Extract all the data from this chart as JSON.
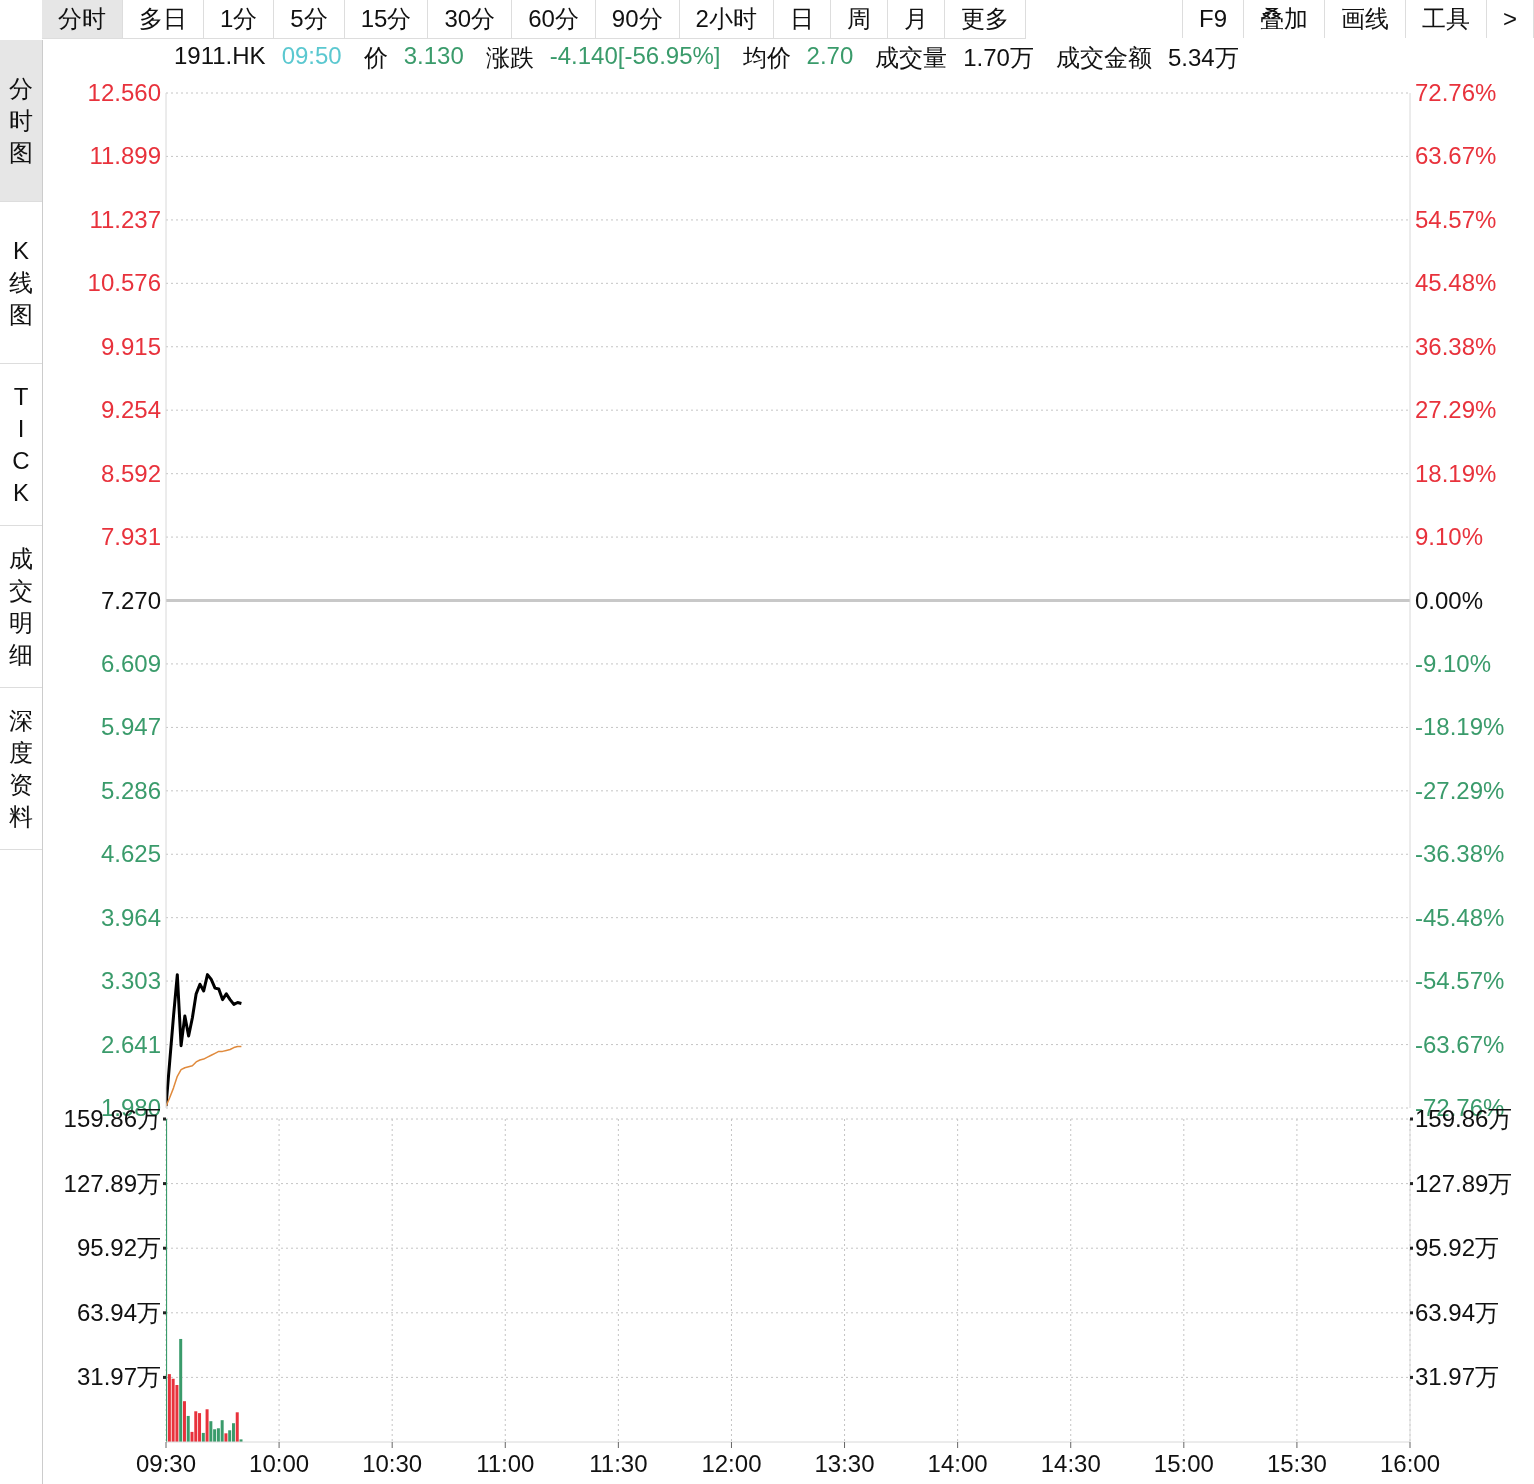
{
  "chart_data": [
    {
      "type": "line",
      "annotations": [
        "1911.HK",
        "09:50",
        "价",
        "3.130",
        "涨跌",
        "-4.140[-56.95%]",
        "均价",
        "2.70",
        "成交量",
        "1.70万",
        "成交金额",
        "5.34万",
        "分时",
        "多日",
        "1分",
        "5分",
        "15分",
        "30分",
        "60分",
        "90分",
        "2小时",
        "日",
        "周",
        "月",
        "更多",
        "F9",
        "叠加",
        "画线",
        "工具",
        ">",
        "分时图",
        "K线图",
        "TICK",
        "成交明细",
        "深度资料"
      ],
      "series": [
        {
          "color": "#000000",
          "values": [
            2.0,
            2.47,
            2.94,
            3.37,
            2.63,
            2.94,
            2.73,
            2.92,
            3.17,
            3.27,
            3.2,
            3.37,
            3.32,
            3.23,
            3.22,
            3.11,
            3.17,
            3.11,
            3.06,
            3.08,
            3.07,
            null,
            null,
            null,
            null,
            null,
            null,
            null,
            null,
            null,
            null,
            null,
            null,
            null,
            null,
            null,
            null,
            null,
            null,
            null,
            null,
            null,
            null,
            null,
            null,
            null,
            null,
            null,
            null,
            null,
            null,
            null,
            null,
            null,
            null,
            null,
            null,
            null,
            null,
            null,
            null,
            null,
            null,
            null,
            null,
            null,
            null,
            null,
            null,
            null,
            null,
            null,
            null,
            null,
            null,
            null,
            null,
            null,
            null,
            null,
            null,
            null,
            null,
            null,
            null,
            null,
            null,
            null,
            null,
            null,
            null,
            null,
            null,
            null,
            null,
            null,
            null,
            null,
            null,
            null,
            null,
            null,
            null,
            null,
            null,
            null,
            null,
            null,
            null,
            null,
            null,
            null,
            null,
            null,
            null,
            null,
            null,
            null,
            null,
            null,
            null,
            null,
            null,
            null,
            null,
            null,
            null,
            null,
            null,
            null,
            null,
            null,
            null,
            null,
            null,
            null,
            null,
            null,
            null,
            null,
            null,
            null,
            null,
            null,
            null,
            null,
            null,
            null,
            null,
            null,
            null,
            null,
            null,
            null,
            null,
            null,
            null,
            null,
            null,
            null,
            null,
            null,
            null,
            null,
            null,
            null,
            null,
            null,
            null,
            null,
            null,
            null,
            null,
            null,
            null,
            null,
            null,
            null,
            null,
            null,
            null,
            null,
            null,
            null,
            null,
            null,
            null,
            null,
            null,
            null,
            null,
            null,
            null,
            null,
            null,
            null,
            null,
            null,
            null,
            null,
            null,
            null,
            null,
            null,
            null,
            null,
            null,
            null,
            null,
            null,
            null,
            null,
            null,
            null,
            null,
            null,
            null,
            null,
            null,
            null,
            null,
            null,
            null,
            null,
            null,
            null,
            null,
            null,
            null,
            null,
            null,
            null,
            null,
            null,
            null,
            null,
            null,
            null,
            null,
            null,
            null,
            null,
            null,
            null,
            null,
            null,
            null,
            null,
            null,
            null,
            null,
            null,
            null,
            null,
            null,
            null,
            null,
            null,
            null,
            null,
            null,
            null,
            null,
            null,
            null,
            null,
            null,
            null,
            null,
            null,
            null,
            null,
            null,
            null,
            null,
            null,
            null,
            null,
            null,
            null,
            null,
            null,
            null,
            null,
            null,
            null,
            null,
            null,
            null,
            null,
            null,
            null,
            null,
            null,
            null,
            null,
            null,
            null,
            null,
            null,
            null,
            null,
            null,
            null,
            null,
            null,
            null,
            null,
            null,
            null,
            null,
            null,
            null,
            null,
            null,
            null,
            null,
            null,
            null,
            null,
            null,
            null,
            null,
            null,
            null,
            null,
            null,
            null,
            null,
            null,
            null,
            null,
            null,
            null,
            null,
            null,
            null,
            null
          ]
        },
        {
          "color": "#e08a3c",
          "values": [
            2.0,
            2.09,
            2.19,
            2.31,
            2.38,
            2.4,
            2.41,
            2.42,
            2.46,
            2.48,
            2.49,
            2.51,
            2.53,
            2.55,
            2.57,
            2.57,
            2.58,
            2.59,
            2.61,
            2.62,
            2.62,
            null,
            null,
            null,
            null,
            null,
            null,
            null,
            null,
            null,
            null,
            null,
            null,
            null,
            null,
            null,
            null,
            null,
            null,
            null,
            null,
            null,
            null,
            null,
            null,
            null,
            null,
            null,
            null,
            null,
            null,
            null,
            null,
            null,
            null,
            null,
            null,
            null,
            null,
            null,
            null,
            null,
            null,
            null,
            null,
            null,
            null,
            null,
            null,
            null,
            null,
            null,
            null,
            null,
            null,
            null,
            null,
            null,
            null,
            null,
            null,
            null,
            null,
            null,
            null,
            null,
            null,
            null,
            null,
            null,
            null,
            null,
            null,
            null,
            null,
            null,
            null,
            null,
            null,
            null,
            null,
            null,
            null,
            null,
            null,
            null,
            null,
            null,
            null,
            null,
            null,
            null,
            null,
            null,
            null,
            null,
            null,
            null,
            null,
            null,
            null,
            null,
            null,
            null,
            null,
            null,
            null,
            null,
            null,
            null,
            null,
            null,
            null,
            null,
            null,
            null,
            null,
            null,
            null,
            null,
            null,
            null,
            null,
            null,
            null,
            null,
            null,
            null,
            null,
            null,
            null,
            null,
            null,
            null,
            null,
            null,
            null,
            null,
            null,
            null,
            null,
            null,
            null,
            null,
            null,
            null,
            null,
            null,
            null,
            null,
            null,
            null,
            null,
            null,
            null,
            null,
            null,
            null,
            null,
            null,
            null,
            null,
            null,
            null,
            null,
            null,
            null,
            null,
            null,
            null,
            null,
            null,
            null,
            null,
            null,
            null,
            null,
            null,
            null,
            null,
            null,
            null,
            null,
            null,
            null,
            null,
            null,
            null,
            null,
            null,
            null,
            null,
            null,
            null,
            null,
            null,
            null,
            null,
            null,
            null,
            null,
            null,
            null,
            null,
            null,
            null,
            null,
            null,
            null,
            null,
            null,
            null,
            null,
            null,
            null,
            null,
            null,
            null,
            null,
            null,
            null,
            null,
            null,
            null,
            null,
            null,
            null,
            null,
            null,
            null,
            null,
            null,
            null,
            null,
            null,
            null,
            null,
            null,
            null,
            null,
            null,
            null,
            null,
            null,
            null,
            null,
            null,
            null,
            null,
            null,
            null,
            null,
            null,
            null,
            null,
            null,
            null,
            null,
            null,
            null,
            null,
            null,
            null,
            null,
            null,
            null,
            null,
            null,
            null,
            null,
            null,
            null,
            null,
            null,
            null,
            null,
            null,
            null,
            null,
            null,
            null,
            null,
            null,
            null,
            null,
            null,
            null,
            null,
            null,
            null,
            null,
            null,
            null,
            null,
            null,
            null,
            null,
            null,
            null,
            null,
            null,
            null,
            null,
            null,
            null,
            null,
            null,
            null,
            null,
            null,
            null,
            null,
            null,
            null,
            null,
            null,
            null,
            null,
            null,
            null,
            null,
            null,
            null
          ]
        }
      ],
      "ylim": [
        1.98,
        12.56
      ],
      "yticks": [
        {
          "value": 1.98,
          "label": "1.980"
        },
        2.641,
        3.303,
        3.964,
        4.625,
        5.286,
        5.947,
        6.609,
        {
          "value": 7.27,
          "label": "7.270"
        },
        7.931,
        8.592,
        9.254,
        9.915,
        10.576,
        11.237,
        11.899,
        {
          "value": 12.56,
          "label": "12.560"
        }
      ],
      "y2lim": [
        -72.76,
        72.76
      ],
      "y2ticks": [
        {
          "value": -72.76,
          "label": "-72.76%"
        },
        {
          "value": -63.67,
          "label": "-63.67%"
        },
        {
          "value": -54.57,
          "label": "-54.57%"
        },
        {
          "value": -45.48,
          "label": "-45.48%"
        },
        {
          "value": -36.38,
          "label": "-36.38%"
        },
        {
          "value": -27.29,
          "label": "-27.29%"
        },
        {
          "value": -18.19,
          "label": "-18.19%"
        },
        {
          "value": -9.1,
          "label": "-9.10%"
        },
        {
          "value": 0,
          "label": "0.00%"
        },
        {
          "value": 9.1,
          "label": "9.10%"
        },
        {
          "value": 18.19,
          "label": "18.19%"
        },
        {
          "value": 27.29,
          "label": "27.29%"
        },
        {
          "value": 36.38,
          "label": "36.38%"
        },
        {
          "value": 45.48,
          "label": "45.48%"
        },
        {
          "value": 54.57,
          "label": "54.57%"
        },
        {
          "value": 63.67,
          "label": "63.67%"
        },
        {
          "value": 72.76,
          "label": "72.76%"
        }
      ],
      "ref_lines": [
        {
          "axis": "y",
          "value": 7.27,
          "color": "#c8c8c8"
        }
      ],
      "grid": true,
      "tick_labels": "y",
      "marker": "none",
      "line_style": "solid"
    },
    {
      "type": "bar",
      "categories": [
        "09:30",
        null,
        null,
        null,
        null,
        null,
        null,
        null,
        null,
        null,
        null,
        null,
        null,
        null,
        null,
        null,
        null,
        null,
        null,
        null,
        null,
        null,
        null,
        null,
        null,
        null,
        null,
        null,
        null,
        null,
        "10:00",
        null,
        null,
        null,
        null,
        null,
        null,
        null,
        null,
        null,
        null,
        null,
        null,
        null,
        null,
        null,
        null,
        null,
        null,
        null,
        null,
        null,
        null,
        null,
        null,
        null,
        null,
        null,
        null,
        null,
        "10:30",
        null,
        null,
        null,
        null,
        null,
        null,
        null,
        null,
        null,
        null,
        null,
        null,
        null,
        null,
        null,
        null,
        null,
        null,
        null,
        null,
        null,
        null,
        null,
        null,
        null,
        null,
        null,
        null,
        null,
        "11:00",
        null,
        null,
        null,
        null,
        null,
        null,
        null,
        null,
        null,
        null,
        null,
        null,
        null,
        null,
        null,
        null,
        null,
        null,
        null,
        null,
        null,
        null,
        null,
        null,
        null,
        null,
        null,
        null,
        null,
        "11:30",
        null,
        null,
        null,
        null,
        null,
        null,
        null,
        null,
        null,
        null,
        null,
        null,
        null,
        null,
        null,
        null,
        null,
        null,
        null,
        null,
        null,
        null,
        null,
        null,
        null,
        null,
        null,
        null,
        null,
        "12:00",
        null,
        null,
        null,
        null,
        null,
        null,
        null,
        null,
        null,
        null,
        null,
        null,
        null,
        null,
        null,
        null,
        null,
        null,
        null,
        null,
        null,
        null,
        null,
        null,
        null,
        null,
        null,
        null,
        null,
        "13:30",
        null,
        null,
        null,
        null,
        null,
        null,
        null,
        null,
        null,
        null,
        null,
        null,
        null,
        null,
        null,
        null,
        null,
        null,
        null,
        null,
        null,
        null,
        null,
        null,
        null,
        null,
        null,
        null,
        null,
        "14:00",
        null,
        null,
        null,
        null,
        null,
        null,
        null,
        null,
        null,
        null,
        null,
        null,
        null,
        null,
        null,
        null,
        null,
        null,
        null,
        null,
        null,
        null,
        null,
        null,
        null,
        null,
        null,
        null,
        null,
        "14:30",
        null,
        null,
        null,
        null,
        null,
        null,
        null,
        null,
        null,
        null,
        null,
        null,
        null,
        null,
        null,
        null,
        null,
        null,
        null,
        null,
        null,
        null,
        null,
        null,
        null,
        null,
        null,
        null,
        null,
        "15:00",
        null,
        null,
        null,
        null,
        null,
        null,
        null,
        null,
        null,
        null,
        null,
        null,
        null,
        null,
        null,
        null,
        null,
        null,
        null,
        null,
        null,
        null,
        null,
        null,
        null,
        null,
        null,
        null,
        null,
        "15:30",
        null,
        null,
        null,
        null,
        null,
        null,
        null,
        null,
        null,
        null,
        null,
        null,
        null,
        null,
        null,
        null,
        null,
        null,
        null,
        null,
        null,
        null,
        null,
        null,
        null,
        null,
        null,
        null,
        null,
        "16:00"
      ],
      "values": [
        159.8,
        33.6,
        31.3,
        28.2,
        51.0,
        20.2,
        12.9,
        5.0,
        15.2,
        14.3,
        4.5,
        16.2,
        10.3,
        6.3,
        6.8,
        10.8,
        4.3,
        5.8,
        9.3,
        14.7,
        1.3,
        null,
        null,
        null,
        null,
        null,
        null,
        null,
        null,
        null,
        null,
        null,
        null,
        null,
        null,
        null,
        null,
        null,
        null,
        null,
        null,
        null,
        null,
        null,
        null,
        null,
        null,
        null,
        null,
        null,
        null,
        null,
        null,
        null,
        null,
        null,
        null,
        null,
        null,
        null,
        null,
        null,
        null,
        null,
        null,
        null,
        null,
        null,
        null,
        null,
        null,
        null,
        null,
        null,
        null,
        null,
        null,
        null,
        null,
        null,
        null,
        null,
        null,
        null,
        null,
        null,
        null,
        null,
        null,
        null,
        null,
        null,
        null,
        null,
        null,
        null,
        null,
        null,
        null,
        null,
        null,
        null,
        null,
        null,
        null,
        null,
        null,
        null,
        null,
        null,
        null,
        null,
        null,
        null,
        null,
        null,
        null,
        null,
        null,
        null,
        null,
        null,
        null,
        null,
        null,
        null,
        null,
        null,
        null,
        null,
        null,
        null,
        null,
        null,
        null,
        null,
        null,
        null,
        null,
        null,
        null,
        null,
        null,
        null,
        null,
        null,
        null,
        null,
        null,
        null,
        null,
        null,
        null,
        null,
        null,
        null,
        null,
        null,
        null,
        null,
        null,
        null,
        null,
        null,
        null,
        null,
        null,
        null,
        null,
        null,
        null,
        null,
        null,
        null,
        null,
        null,
        null,
        null,
        null,
        null,
        null,
        null,
        null,
        null,
        null,
        null,
        null,
        null,
        null,
        null,
        null,
        null,
        null,
        null,
        null,
        null,
        null,
        null,
        null,
        null,
        null,
        null,
        null,
        null,
        null,
        null,
        null,
        null,
        null,
        null,
        null,
        null,
        null,
        null,
        null,
        null,
        null,
        null,
        null,
        null,
        null,
        null,
        null,
        null,
        null,
        null,
        null,
        null,
        null,
        null,
        null,
        null,
        null,
        null,
        null,
        null,
        null,
        null,
        null,
        null,
        null,
        null,
        null,
        null,
        null,
        null,
        null,
        null,
        null,
        null,
        null,
        null,
        null,
        null,
        null,
        null,
        null,
        null,
        null,
        null,
        null,
        null,
        null,
        null,
        null,
        null,
        null,
        null,
        null,
        null,
        null,
        null,
        null,
        null,
        null,
        null,
        null,
        null,
        null,
        null,
        null,
        null,
        null,
        null,
        null,
        null,
        null,
        null,
        null,
        null,
        null,
        null,
        null,
        null,
        null,
        null,
        null,
        null,
        null,
        null,
        null,
        null,
        null,
        null,
        null,
        null,
        null,
        null,
        null,
        null,
        null,
        null,
        null,
        null,
        null,
        null,
        null,
        null,
        null,
        null,
        null,
        null,
        null,
        null,
        null,
        null,
        null,
        null,
        null,
        null,
        null
      ],
      "colors": [
        "#3a9b6b",
        "#e8323c",
        "#e8323c",
        "#e8323c",
        "#3a9b6b",
        "#e8323c",
        "#3a9b6b",
        "#e8323c",
        "#e8323c",
        "#e8323c",
        "#3a9b6b",
        "#e8323c",
        "#3a9b6b",
        "#3a9b6b",
        "#3a9b6b",
        "#3a9b6b",
        "#e8323c",
        "#3a9b6b",
        "#3a9b6b",
        "#e8323c",
        "#3a9b6b",
        null,
        null,
        null,
        null,
        null,
        null,
        null,
        null,
        null,
        null,
        null,
        null,
        null,
        null,
        null,
        null,
        null,
        null,
        null,
        null,
        null,
        null,
        null,
        null,
        null,
        null,
        null,
        null,
        null,
        null,
        null,
        null,
        null,
        null,
        null,
        null,
        null,
        null,
        null,
        null,
        null,
        null,
        null,
        null,
        null,
        null,
        null,
        null,
        null,
        null,
        null,
        null,
        null,
        null,
        null,
        null,
        null,
        null,
        null,
        null,
        null,
        null,
        null,
        null,
        null,
        null,
        null,
        null,
        null,
        null,
        null,
        null,
        null,
        null,
        null,
        null,
        null,
        null,
        null,
        null,
        null,
        null,
        null,
        null,
        null,
        null,
        null,
        null,
        null,
        null,
        null,
        null,
        null,
        null,
        null,
        null,
        null,
        null,
        null,
        null,
        null,
        null,
        null,
        null,
        null,
        null,
        null,
        null,
        null,
        null,
        null,
        null,
        null,
        null,
        null,
        null,
        null,
        null,
        null,
        null,
        null,
        null,
        null,
        null,
        null,
        null,
        null,
        null,
        null,
        null,
        null,
        null,
        null,
        null,
        null,
        null,
        null,
        null,
        null,
        null,
        null,
        null,
        null,
        null,
        null,
        null,
        null,
        null,
        null,
        null,
        null,
        null,
        null,
        null,
        null,
        null,
        null,
        null,
        null,
        null,
        null,
        null,
        null,
        null,
        null,
        null,
        null,
        null,
        null,
        null,
        null,
        null,
        null,
        null,
        null,
        null,
        null,
        null,
        null,
        null,
        null,
        null,
        null,
        null,
        null,
        null,
        null,
        null,
        null,
        null,
        null,
        null,
        null,
        null,
        null,
        null,
        null,
        null,
        null,
        null,
        null,
        null,
        null,
        null,
        null,
        null,
        null,
        null,
        null,
        null,
        null,
        null,
        null,
        null,
        null,
        null,
        null,
        null,
        null,
        null,
        null,
        null,
        null,
        null,
        null,
        null,
        null,
        null,
        null,
        null,
        null,
        null,
        null,
        null,
        null,
        null,
        null,
        null,
        null,
        null,
        null,
        null,
        null,
        null,
        null,
        null,
        null,
        null,
        null,
        null,
        null,
        null,
        null,
        null,
        null,
        null,
        null,
        null,
        null,
        null,
        null,
        null,
        null,
        null,
        null,
        null,
        null,
        null,
        null,
        null,
        null,
        null,
        null,
        null,
        null,
        null,
        null,
        null,
        null,
        null,
        null,
        null,
        null,
        null,
        null,
        null,
        null,
        null,
        null,
        null,
        null,
        null,
        null,
        null,
        null,
        null,
        null,
        null,
        null,
        null,
        null,
        null,
        null,
        null,
        null,
        null,
        null,
        null,
        null,
        null
      ],
      "ylim": [
        0,
        159.86
      ],
      "yticks": [
        {
          "value": 31.97,
          "label": "31.97万"
        },
        {
          "value": 63.94,
          "label": "63.94万"
        },
        {
          "value": 95.92,
          "label": "95.92万"
        },
        {
          "value": 127.89,
          "label": "127.89万"
        },
        {
          "value": 159.86,
          "label": "159.86万"
        }
      ],
      "y2lim": [
        0,
        159.86
      ],
      "y2ticks": [
        {
          "value": 31.97,
          "label": "31.97万"
        },
        {
          "value": 63.94,
          "label": "63.94万"
        },
        {
          "value": 95.92,
          "label": "95.92万"
        },
        {
          "value": 127.89,
          "label": "127.89万"
        },
        {
          "value": 159.86,
          "label": "159.86万"
        }
      ],
      "grid": true
    }
  ]
}
